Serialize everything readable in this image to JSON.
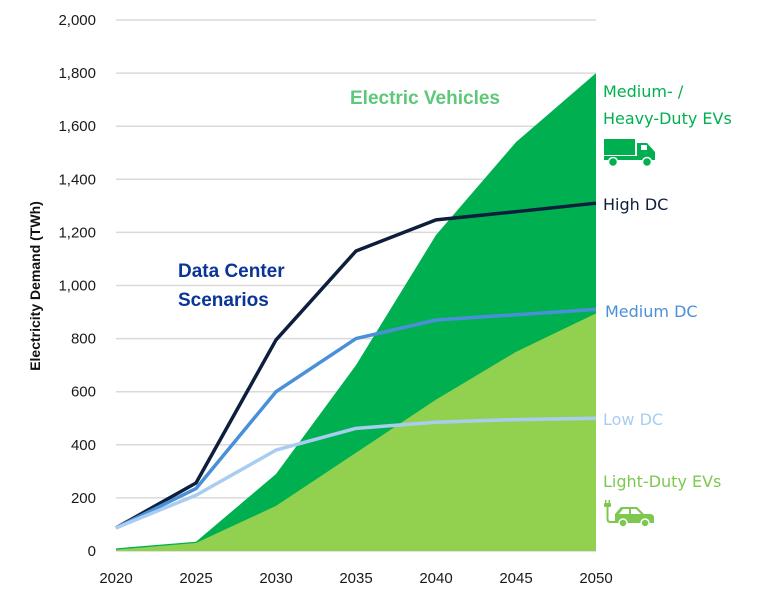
{
  "chart_data": {
    "type": "area",
    "title": "",
    "xlabel": "",
    "ylabel": "Electricity Demand (TWh)",
    "x": [
      2020,
      2025,
      2030,
      2035,
      2040,
      2045,
      2050
    ],
    "xticks": [
      "2020",
      "2025",
      "2030",
      "2035",
      "2040",
      "2045",
      "2050"
    ],
    "ylim": [
      0,
      2000
    ],
    "yticks": [
      "0",
      "200",
      "400",
      "600",
      "800",
      "1,000",
      "1,200",
      "1,400",
      "1,600",
      "1,800",
      "2,000"
    ],
    "ytick_values": [
      0,
      200,
      400,
      600,
      800,
      1000,
      1200,
      1400,
      1600,
      1800,
      2000
    ],
    "grid": true,
    "areas": [
      {
        "name": "Medium- / Heavy-Duty EVs",
        "label_lines": [
          "Medium- /",
          "Heavy-Duty EVs"
        ],
        "icon": "truck-icon",
        "color": "#00b050",
        "label_color": "#00b050",
        "stacked_top": [
          10,
          35,
          290,
          700,
          1190,
          1540,
          1800
        ]
      },
      {
        "name": "Light-Duty EVs",
        "label_lines": [
          "Light-Duty EVs"
        ],
        "icon": "electric-car-icon",
        "color": "#92d050",
        "label_color": "#7ec850",
        "values": [
          5,
          30,
          170,
          370,
          570,
          750,
          895
        ]
      }
    ],
    "series": [
      {
        "name": "High DC",
        "color": "#0d1f3c",
        "values": [
          87,
          256,
          795,
          1130,
          1247,
          1278,
          1310
        ]
      },
      {
        "name": "Medium DC",
        "color": "#4a90d9",
        "values": [
          87,
          235,
          600,
          800,
          870,
          890,
          910
        ]
      },
      {
        "name": "Low DC",
        "color": "#a9cdf0",
        "values": [
          87,
          210,
          380,
          462,
          485,
          495,
          500
        ]
      }
    ],
    "annotations": [
      {
        "text": "Electric Vehicles",
        "color": "#5cc878"
      },
      {
        "text_lines": [
          "Data Center",
          "Scenarios"
        ],
        "color": "#0a3597"
      }
    ]
  }
}
